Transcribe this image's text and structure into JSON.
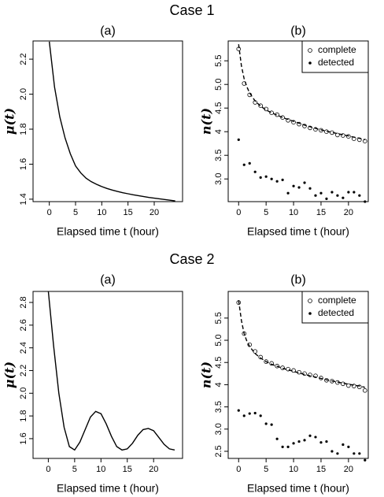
{
  "figure": {
    "case_titles": [
      "Case 1",
      "Case 2"
    ]
  },
  "chart_data": [
    {
      "type": "line",
      "title": "(a)",
      "x_label": "Elapsed time t  (hour)",
      "y_label": "μ(t)",
      "xlim": [
        -3.1,
        25.4
      ],
      "ylim": [
        1.386,
        2.304
      ],
      "xticks": [
        0,
        5,
        10,
        15,
        20
      ],
      "yticks": [
        1.4,
        1.6,
        1.8,
        {
          "value": 2,
          "label": "2.0"
        },
        2.2
      ],
      "series": [
        {
          "color": "#000000",
          "mark": "solid-line",
          "x": [
            0,
            1,
            2,
            3,
            4,
            5,
            6,
            7,
            8,
            9,
            10,
            11,
            12,
            13,
            14,
            15,
            16,
            17,
            18,
            19,
            20,
            21,
            22,
            23,
            24
          ],
          "values": [
            2.3,
            2.04,
            1.87,
            1.75,
            1.66,
            1.59,
            1.55,
            1.52,
            1.5,
            1.485,
            1.472,
            1.461,
            1.452,
            1.444,
            1.437,
            1.431,
            1.425,
            1.42,
            1.415,
            1.41,
            1.406,
            1.402,
            1.398,
            1.394,
            1.39
          ]
        }
      ]
    },
    {
      "type": "scatter",
      "title": "(b)",
      "x_label": "Elapsed time t  (hour)",
      "y_label": "n(t)",
      "xlim": [
        -1.9,
        23.6
      ],
      "ylim": [
        2.52,
        5.92
      ],
      "xticks": [
        0,
        5,
        10,
        15,
        20
      ],
      "yticks": [
        {
          "value": 3,
          "label": "3.0"
        },
        3.5,
        4.0,
        4.5,
        {
          "value": 5,
          "label": "5.0"
        },
        5.5
      ],
      "legend": "top-right",
      "series": [
        {
          "name": "complete",
          "color": "#000000",
          "mark": "open-circle",
          "x": [
            0,
            1,
            2,
            3,
            4,
            5,
            6,
            7,
            8,
            9,
            10,
            11,
            12,
            13,
            14,
            15,
            16,
            17,
            18,
            19,
            20,
            21,
            22,
            23
          ],
          "values": [
            5.75,
            5.02,
            4.78,
            4.62,
            4.55,
            4.48,
            4.4,
            4.36,
            4.3,
            4.24,
            4.2,
            4.16,
            4.12,
            4.08,
            4.05,
            4.03,
            4.0,
            3.98,
            3.93,
            3.92,
            3.9,
            3.85,
            3.83,
            3.8
          ]
        },
        {
          "name": "detected",
          "color": "#000000",
          "mark": "dot",
          "x": [
            0,
            1,
            2,
            3,
            4,
            5,
            6,
            7,
            8,
            9,
            10,
            11,
            12,
            13,
            14,
            15,
            16,
            17,
            18,
            19,
            20,
            21,
            22,
            23
          ],
          "values": [
            3.83,
            3.3,
            3.33,
            3.15,
            3.03,
            3.05,
            3.0,
            2.95,
            2.98,
            2.7,
            2.85,
            2.82,
            2.92,
            2.8,
            2.65,
            2.7,
            2.58,
            2.72,
            2.65,
            2.6,
            2.72,
            2.72,
            2.65,
            2.52
          ]
        },
        {
          "color": "#000000",
          "mark": "dashed-line",
          "x": [
            0,
            0.5,
            1,
            1.5,
            2,
            3,
            4,
            5,
            6,
            8,
            10,
            12,
            14,
            16,
            18,
            20,
            22,
            23
          ],
          "values": [
            5.85,
            5.4,
            5.12,
            4.95,
            4.82,
            4.65,
            4.54,
            4.46,
            4.4,
            4.3,
            4.22,
            4.14,
            4.07,
            4.01,
            3.96,
            3.91,
            3.86,
            3.83
          ]
        }
      ]
    },
    {
      "type": "line",
      "title": "(a)",
      "x_label": "Elapsed time t  (hour)",
      "y_label": "μ(t)",
      "xlim": [
        -2.9,
        25.5
      ],
      "ylim": [
        1.426,
        2.897
      ],
      "xticks": [
        0,
        5,
        10,
        15,
        20
      ],
      "yticks": [
        1.6,
        1.8,
        {
          "value": 2,
          "label": "2.0"
        },
        2.2,
        2.4,
        2.6,
        2.8
      ],
      "series": [
        {
          "color": "#000000",
          "mark": "solid-line",
          "x": [
            0,
            1,
            2,
            3,
            4,
            5,
            6,
            7,
            8,
            9,
            10,
            11,
            12,
            13,
            14,
            15,
            16,
            17,
            18,
            19,
            20,
            21,
            22,
            23,
            24
          ],
          "values": [
            2.9,
            2.42,
            2.0,
            1.7,
            1.53,
            1.5,
            1.57,
            1.68,
            1.79,
            1.84,
            1.82,
            1.73,
            1.62,
            1.53,
            1.5,
            1.51,
            1.56,
            1.63,
            1.68,
            1.69,
            1.67,
            1.61,
            1.55,
            1.51,
            1.5
          ]
        }
      ]
    },
    {
      "type": "scatter",
      "title": "(b)",
      "x_label": "Elapsed time t  (hour)",
      "y_label": "n(t)",
      "xlim": [
        -1.9,
        23.6
      ],
      "ylim": [
        2.34,
        6.1
      ],
      "xticks": [
        0,
        5,
        10,
        15,
        20
      ],
      "yticks": [
        2.5,
        {
          "value": 3,
          "label": "3.0"
        },
        3.5,
        4.0,
        4.5,
        {
          "value": 5,
          "label": "5.0"
        },
        5.5
      ],
      "legend": "top-right",
      "series": [
        {
          "name": "complete",
          "color": "#000000",
          "mark": "open-circle",
          "x": [
            0,
            1,
            2,
            3,
            4,
            5,
            6,
            7,
            8,
            9,
            10,
            11,
            12,
            13,
            14,
            15,
            16,
            17,
            18,
            19,
            20,
            21,
            22,
            23
          ],
          "values": [
            5.85,
            5.15,
            4.9,
            4.75,
            4.62,
            4.52,
            4.48,
            4.42,
            4.38,
            4.35,
            4.32,
            4.28,
            4.25,
            4.22,
            4.2,
            4.15,
            4.1,
            4.08,
            4.05,
            4.02,
            3.98,
            3.97,
            3.95,
            3.87
          ]
        },
        {
          "name": "detected",
          "color": "#000000",
          "mark": "dot",
          "x": [
            0,
            1,
            2,
            3,
            4,
            5,
            6,
            7,
            8,
            9,
            10,
            11,
            12,
            13,
            14,
            15,
            16,
            17,
            18,
            19,
            20,
            21,
            22,
            23
          ],
          "values": [
            3.42,
            3.3,
            3.35,
            3.36,
            3.3,
            3.12,
            3.1,
            2.78,
            2.6,
            2.6,
            2.68,
            2.72,
            2.75,
            2.85,
            2.82,
            2.7,
            2.72,
            2.5,
            2.45,
            2.65,
            2.6,
            2.45,
            2.45,
            2.3
          ]
        },
        {
          "color": "#000000",
          "mark": "dashed-line",
          "x": [
            0,
            0.5,
            1,
            1.5,
            2,
            3,
            4,
            5,
            6,
            8,
            10,
            12,
            14,
            16,
            18,
            20,
            22,
            23
          ],
          "values": [
            5.9,
            5.45,
            5.15,
            4.98,
            4.86,
            4.7,
            4.6,
            4.52,
            4.46,
            4.37,
            4.3,
            4.23,
            4.17,
            4.11,
            4.06,
            4.01,
            3.97,
            3.94
          ]
        }
      ]
    }
  ]
}
